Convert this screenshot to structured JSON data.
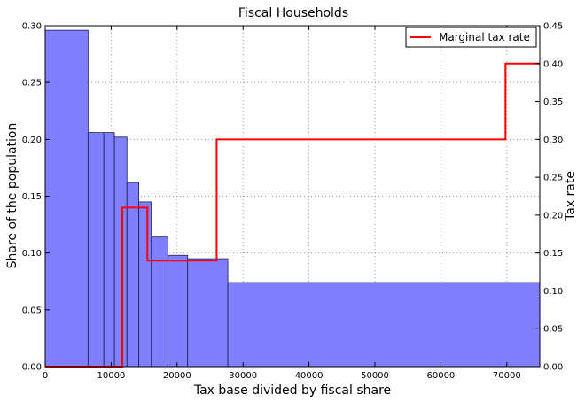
{
  "chart_data": {
    "type": "bar",
    "title": "Fiscal Households",
    "xlabel": "Tax base divided by fiscal share",
    "ylabel_left": "Share of the population",
    "ylabel_right": "Tax rate",
    "xlim": [
      0,
      75000
    ],
    "ylim_left": [
      0,
      0.3
    ],
    "ylim_right": [
      0,
      0.45
    ],
    "grid": true,
    "legend_position": "top-right",
    "x_ticks": [
      "0",
      "10000",
      "20000",
      "30000",
      "40000",
      "50000",
      "60000",
      "70000"
    ],
    "y_left_ticks": [
      "0.00",
      "0.05",
      "0.10",
      "0.15",
      "0.20",
      "0.25",
      "0.30"
    ],
    "y_right_ticks": [
      "0.00",
      "0.05",
      "0.10",
      "0.15",
      "0.20",
      "0.25",
      "0.30",
      "0.35",
      "0.40",
      "0.45"
    ],
    "colors": {
      "bar_fill": "#8080ff",
      "bar_edge": "#1a1a4d",
      "line": "#ff0000",
      "grid": "#999999"
    },
    "histogram": [
      {
        "x0": 0,
        "x1": 6500,
        "value": 0.296
      },
      {
        "x0": 6500,
        "x1": 8900,
        "value": 0.206
      },
      {
        "x0": 8900,
        "x1": 10500,
        "value": 0.206
      },
      {
        "x0": 10500,
        "x1": 12400,
        "value": 0.202
      },
      {
        "x0": 12400,
        "x1": 14200,
        "value": 0.162
      },
      {
        "x0": 14200,
        "x1": 16100,
        "value": 0.145
      },
      {
        "x0": 16100,
        "x1": 18600,
        "value": 0.114
      },
      {
        "x0": 18600,
        "x1": 21600,
        "value": 0.098
      },
      {
        "x0": 21600,
        "x1": 27700,
        "value": 0.095
      },
      {
        "x0": 27700,
        "x1": 75000,
        "value": 0.074
      }
    ],
    "series": [
      {
        "name": "Marginal tax rate",
        "type": "step",
        "axis": "right",
        "points": [
          [
            0,
            0.0
          ],
          [
            11700,
            0.0
          ],
          [
            11700,
            0.21
          ],
          [
            15500,
            0.21
          ],
          [
            15500,
            0.14
          ],
          [
            26000,
            0.14
          ],
          [
            26000,
            0.3
          ],
          [
            69800,
            0.3
          ],
          [
            69800,
            0.4
          ],
          [
            75000,
            0.4
          ]
        ]
      }
    ]
  }
}
